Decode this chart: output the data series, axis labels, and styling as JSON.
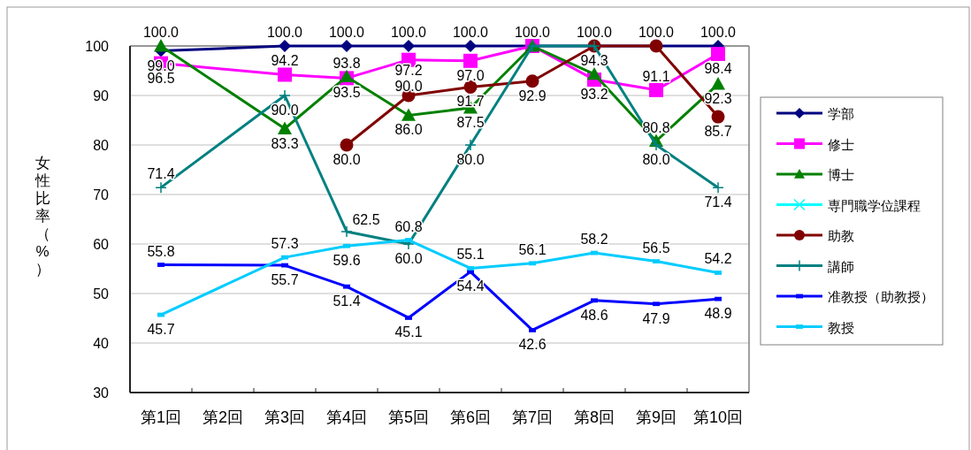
{
  "chart_data": {
    "type": "line",
    "ylabel": "女性比率（%）",
    "categories": [
      "第1回",
      "第2回",
      "第3回",
      "第4回",
      "第5回",
      "第6回",
      "第7回",
      "第8回",
      "第9回",
      "第10回"
    ],
    "ylim": [
      30,
      100
    ],
    "yticks": [
      30,
      40,
      50,
      60,
      70,
      80,
      90,
      100
    ],
    "grid": "y",
    "legend": "right",
    "series": [
      {
        "name": "学部",
        "color": "#000080",
        "marker": "diamond",
        "values": [
          99.0,
          null,
          100,
          100,
          100,
          100,
          100,
          100,
          100,
          100
        ],
        "value_labels": [
          "99.0",
          null,
          "100.0",
          "100.0",
          "100.0",
          "100.0",
          "100.0",
          "100.0",
          "100.0",
          "100.0"
        ]
      },
      {
        "name": "修士",
        "color": "#ff00ff",
        "marker": "square",
        "values": [
          96.5,
          null,
          94.2,
          93.5,
          97.2,
          97.0,
          100,
          93.2,
          91.1,
          98.4
        ],
        "value_labels": [
          "96.5",
          null,
          "94.2",
          "93.5",
          "97.2",
          "97.0",
          null,
          "93.2",
          "91.1",
          "98.4"
        ]
      },
      {
        "name": "博士",
        "color": "#008000",
        "marker": "triangle",
        "values": [
          100,
          null,
          83.3,
          93.8,
          86.0,
          87.5,
          100,
          94.3,
          80.8,
          92.3
        ],
        "value_labels": [
          "100.0",
          null,
          "83.3",
          "93.8",
          "86.0",
          "87.5",
          null,
          "94.3",
          "80.8",
          "92.3"
        ]
      },
      {
        "name": "専門職学位課程",
        "color": "#00ffff",
        "marker": "cross",
        "values": [
          null,
          null,
          null,
          null,
          null,
          null,
          null,
          null,
          null,
          null
        ]
      },
      {
        "name": "助教",
        "color": "#800000",
        "marker": "circle",
        "values": [
          null,
          null,
          null,
          80.0,
          90.0,
          91.7,
          92.9,
          100,
          100,
          85.7
        ],
        "value_labels": [
          null,
          null,
          null,
          "80.0",
          "90.0",
          "91.7",
          "92.9",
          null,
          null,
          "85.7"
        ]
      },
      {
        "name": "講師",
        "color": "#008080",
        "marker": "plus",
        "values": [
          71.4,
          null,
          90.0,
          62.5,
          60.0,
          80.0,
          100,
          100,
          80.0,
          71.4
        ],
        "value_labels": [
          "71.4",
          null,
          "90.0",
          "62.5",
          "60.0",
          "80.0",
          null,
          null,
          "80.0",
          "71.4"
        ]
      },
      {
        "name": "准教授（助教授）",
        "color": "#0000ff",
        "marker": "square",
        "values": [
          55.8,
          null,
          55.7,
          51.4,
          45.1,
          54.4,
          42.6,
          48.6,
          47.9,
          48.9
        ],
        "value_labels": [
          "55.8",
          null,
          "55.7",
          "51.4",
          "45.1",
          "54.4",
          "42.6",
          "48.6",
          "47.9",
          "48.9"
        ]
      },
      {
        "name": "教授",
        "color": "#00ccff",
        "marker": "square",
        "values": [
          45.7,
          null,
          57.3,
          59.6,
          60.8,
          55.1,
          56.1,
          58.2,
          56.5,
          54.2
        ],
        "value_labels": [
          "45.7",
          null,
          "57.3",
          "59.6",
          "60.8",
          "55.1",
          "56.1",
          "58.2",
          "56.5",
          "54.2"
        ]
      }
    ]
  }
}
